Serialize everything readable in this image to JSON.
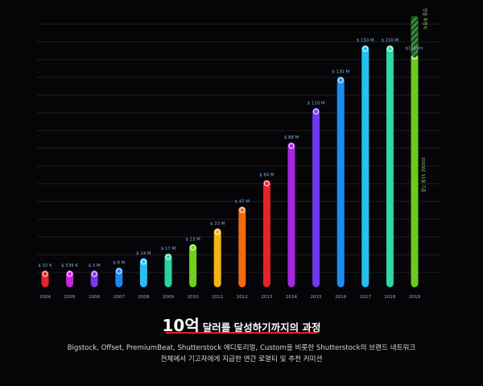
{
  "chart_data": {
    "type": "bar",
    "categories": [
      "2004",
      "2005",
      "2006",
      "2007",
      "2008",
      "2009",
      "2010",
      "2011",
      "2012",
      "2013",
      "2014",
      "2015",
      "2016",
      "2017",
      "2018",
      "2019"
    ],
    "values": [
      0.032,
      0.539,
      3,
      8,
      14,
      17,
      23,
      33,
      47,
      64,
      88,
      110,
      130,
      150,
      150,
      145
    ],
    "value_labels": [
      "$ 32 K",
      "$ 539 K",
      "$ 3 M",
      "$ 8 M",
      "$ 14 M",
      "$ 17 M",
      "$ 23 M",
      "$ 33 M",
      "$ 47 M",
      "$ 64 M",
      "$ 88 M",
      "$ 110 M",
      "$ 130 M",
      "$ 150 M",
      "$ 150 M",
      "$145M+"
    ],
    "colors": [
      "#e3242b",
      "#c327e0",
      "#7b36f2",
      "#1b87ee",
      "#27bff0",
      "#27d3a0",
      "#6fd11a",
      "#f5b416",
      "#f26b0e",
      "#e5232b",
      "#a627e0",
      "#6d3af0",
      "#1a8ff0",
      "#25c0f0",
      "#2fd6a6",
      "#6ccb1a"
    ],
    "projection": {
      "label": "연말 추정치",
      "color": "#2f8a2f"
    },
    "side_note": "2019년 11월 기준",
    "ylim": [
      0,
      172
    ],
    "grid": true,
    "title": "10억 달러를 달성하기까지의 과정"
  },
  "headline": {
    "number": "10억",
    "rest": "달러를 달성하기까지의 과정"
  },
  "description": [
    "Bigstock, Offset, PremiumBeat, Shutterstock 에디토리얼, Custom을 비롯한 Shutterstock의 브랜드 네트워크",
    "전체에서 기고자에게 지급한 연간 로열티 및 추천 커미션"
  ]
}
